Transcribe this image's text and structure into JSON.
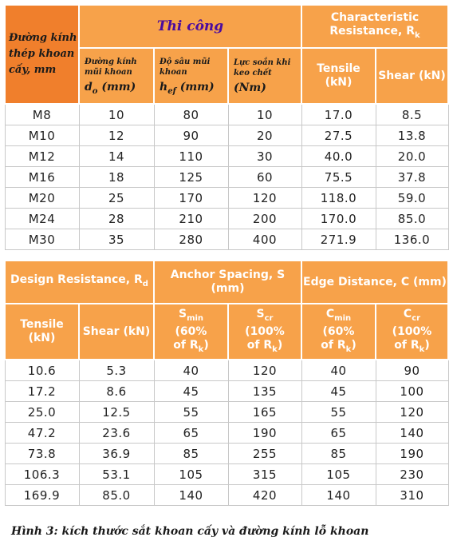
{
  "table1": {
    "col_diameter": "Đường kính thép khoan cấy, mm",
    "group_thicong": "Thi công",
    "group_resistance": "Characteristic Resistance, R",
    "group_resistance_sub": "k",
    "sub_do_label": "Đường kính mũi khoan",
    "sub_do_sym": "d",
    "sub_do_symsub": "o",
    "sub_do_unit": "(mm)",
    "sub_hef_label": "Độ sâu mũi khoan",
    "sub_hef_sym": "h",
    "sub_hef_symsub": "ef",
    "sub_hef_unit": "(mm)",
    "sub_torque_label": "Lực soắn khi keo chết",
    "sub_torque_unit": "(Nm)",
    "sub_tensile": "Tensile (kN)",
    "sub_shear": "Shear (kN)",
    "rows": [
      [
        "M8",
        "10",
        "80",
        "10",
        "17.0",
        "8.5"
      ],
      [
        "M10",
        "12",
        "90",
        "20",
        "27.5",
        "13.8"
      ],
      [
        "M12",
        "14",
        "110",
        "30",
        "40.0",
        "20.0"
      ],
      [
        "M16",
        "18",
        "125",
        "60",
        "75.5",
        "37.8"
      ],
      [
        "M20",
        "25",
        "170",
        "120",
        "118.0",
        "59.0"
      ],
      [
        "M24",
        "28",
        "210",
        "200",
        "170.0",
        "85.0"
      ],
      [
        "M30",
        "35",
        "280",
        "400",
        "271.9",
        "136.0"
      ]
    ]
  },
  "table2": {
    "group_design": "Design Resistance, R",
    "group_design_sub": "d",
    "group_spacing": "Anchor Spacing, S (mm)",
    "group_edge": "Edge Distance, C (mm)",
    "sub_tensile": "Tensile (kN)",
    "sub_shear": "Shear (kN)",
    "smin_sym": "S",
    "smin_sub": "min",
    "smin_pct": "(60%",
    "smin_of": "of R",
    "smin_of_sub": "k",
    "smin_close": ")",
    "scr_sym": "S",
    "scr_sub": "cr",
    "scr_pct": "(100%",
    "scr_of": "of R",
    "scr_of_sub": "k",
    "scr_close": ")",
    "cmin_sym": "C",
    "cmin_sub": "min",
    "cmin_pct": "(60%",
    "cmin_of": "of R",
    "cmin_of_sub": "k",
    "cmin_close": ")",
    "ccr_sym": "C",
    "ccr_sub": "cr",
    "ccr_pct": "(100%",
    "ccr_of": "of R",
    "ccr_of_sub": "k",
    "ccr_close": ")",
    "rows": [
      [
        "10.6",
        "5.3",
        "40",
        "120",
        "40",
        "90"
      ],
      [
        "17.2",
        "8.6",
        "45",
        "135",
        "45",
        "100"
      ],
      [
        "25.0",
        "12.5",
        "55",
        "165",
        "55",
        "120"
      ],
      [
        "47.2",
        "23.6",
        "65",
        "190",
        "65",
        "140"
      ],
      [
        "73.8",
        "36.9",
        "85",
        "255",
        "85",
        "190"
      ],
      [
        "106.3",
        "53.1",
        "105",
        "315",
        "105",
        "230"
      ],
      [
        "169.9",
        "85.0",
        "140",
        "420",
        "140",
        "310"
      ]
    ]
  },
  "caption": "Hình 3: kích thước sắt khoan cấy và đường kính lỗ khoan"
}
